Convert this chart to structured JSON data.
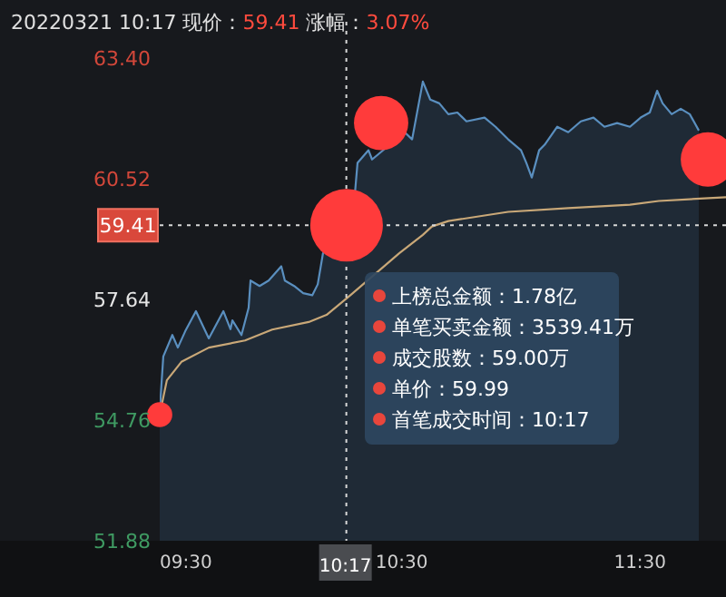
{
  "chart_data": {
    "type": "area",
    "title": "20220321 10:17 现价：59.41 涨幅：3.07%",
    "ylim": [
      51.88,
      63.4
    ],
    "yticks": [
      {
        "value": 63.4,
        "label": "63.40"
      },
      {
        "value": 60.52,
        "label": "60.52"
      },
      {
        "value": 57.64,
        "label": "57.64"
      },
      {
        "value": 54.76,
        "label": "54.76"
      },
      {
        "value": 51.88,
        "label": "51.88"
      }
    ],
    "xlim": [
      9.5,
      11.876
    ],
    "xticks": [
      {
        "value": 9.5,
        "label": "09:30"
      },
      {
        "value": 10.5,
        "label": "10:30"
      },
      {
        "value": 11.5,
        "label": "11:30"
      }
    ],
    "grid": false,
    "ref_lines": [
      {
        "axis": "y",
        "value": 59.41,
        "label": "59.41",
        "color": "#d8d8d8",
        "line_style": "dotted"
      },
      {
        "axis": "x",
        "value": 10.283,
        "label": "10:17",
        "color": "#d8d8d8",
        "line_style": "dotted"
      }
    ],
    "series": [
      {
        "color": "#5a8fbf",
        "x": [
          9.5,
          9.515,
          9.553,
          9.576,
          9.607,
          9.652,
          9.706,
          9.767,
          9.797,
          9.805,
          9.843,
          9.873,
          9.881,
          9.919,
          9.957,
          10.01,
          10.025,
          10.064,
          10.102,
          10.14,
          10.163,
          10.185,
          10.216,
          10.284,
          10.315,
          10.33,
          10.376,
          10.391,
          10.528,
          10.559,
          10.604,
          10.635,
          10.673,
          10.711,
          10.749,
          10.787,
          10.863,
          10.909,
          10.962,
          11.016,
          11.038,
          11.061,
          11.092,
          11.115,
          11.168,
          11.214,
          11.267,
          11.32,
          11.366,
          11.419,
          11.473,
          11.518,
          11.556,
          11.587,
          11.61,
          11.648,
          11.686,
          11.724,
          11.762
        ],
        "values": [
          54.98,
          56.28,
          56.79,
          56.49,
          56.88,
          57.36,
          56.71,
          57.36,
          56.93,
          57.14,
          56.79,
          57.44,
          58.09,
          57.96,
          58.09,
          58.43,
          58.09,
          57.96,
          57.79,
          57.74,
          58.0,
          58.74,
          59.04,
          59.41,
          59.9,
          60.9,
          61.2,
          60.98,
          61.63,
          61.46,
          62.84,
          62.41,
          62.32,
          62.06,
          62.1,
          61.89,
          61.98,
          61.76,
          61.46,
          61.2,
          60.9,
          60.55,
          61.2,
          61.33,
          61.76,
          61.63,
          61.89,
          61.98,
          61.76,
          61.85,
          61.76,
          61.98,
          62.1,
          62.62,
          62.32,
          62.06,
          62.19,
          62.06,
          61.67
        ]
      },
      {
        "type": "line",
        "color": "#c9a878",
        "x": [
          9.5,
          9.53,
          9.591,
          9.706,
          9.858,
          9.972,
          10.125,
          10.2,
          10.3,
          10.505,
          10.604,
          10.642,
          10.711,
          10.962,
          11.214,
          11.473,
          11.594,
          11.876
        ],
        "values": [
          54.89,
          55.71,
          56.15,
          56.49,
          56.66,
          56.92,
          57.1,
          57.27,
          57.74,
          58.74,
          59.18,
          59.38,
          59.51,
          59.73,
          59.82,
          59.9,
          59.99,
          60.08
        ]
      },
      {
        "type": "bubble",
        "color": "#ff3b3b",
        "x": [
          9.5,
          10.284,
          10.429,
          11.8
        ],
        "values": [
          54.89,
          59.41,
          61.85,
          60.98
        ],
        "sizes": [
          0.12,
          1,
          0.56,
          0.56
        ]
      }
    ],
    "annotations": [
      "上榜总金额：1.78亿",
      "单笔买卖金额：3539.41万",
      "成交股数：59.00万",
      "单价：59.99",
      "首笔成交时间：10:17"
    ]
  }
}
